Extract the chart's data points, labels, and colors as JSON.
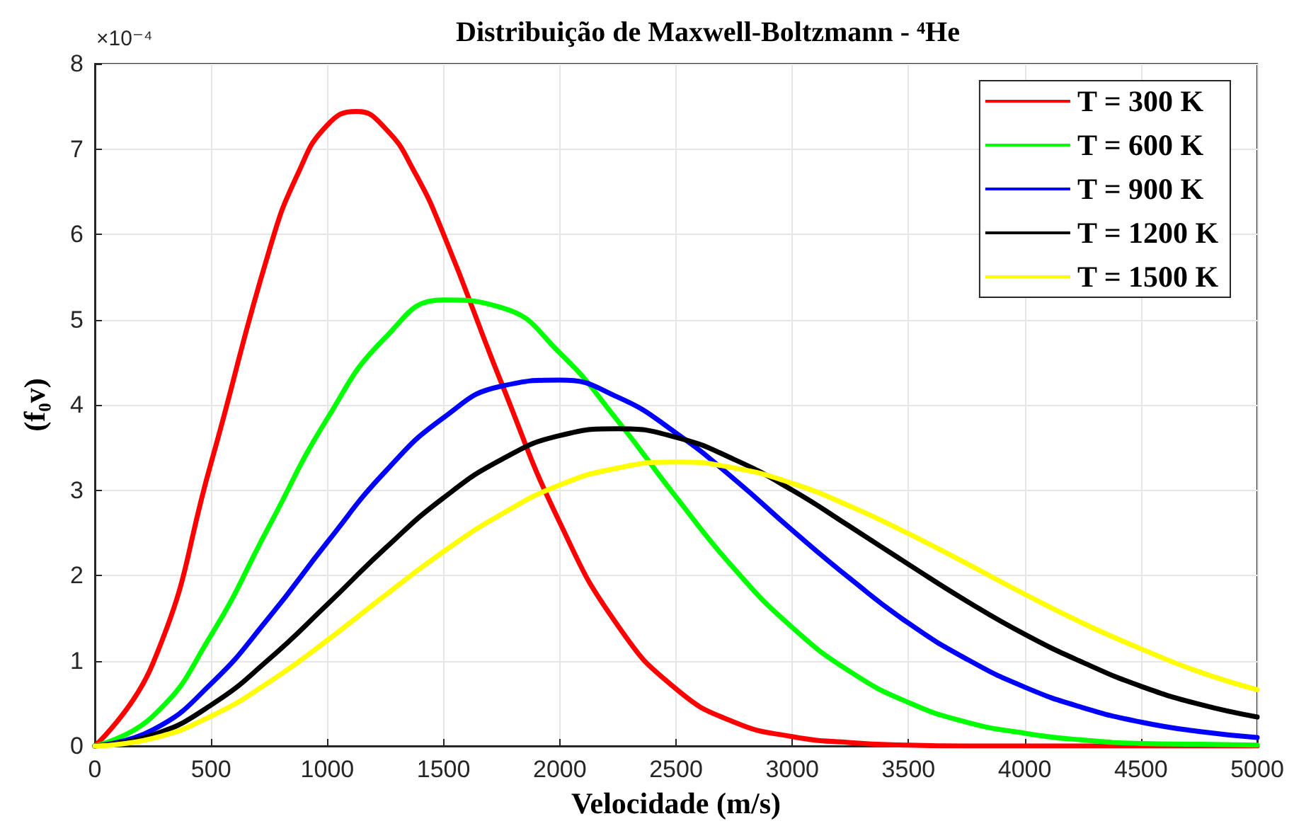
{
  "chart_data": {
    "type": "line",
    "title": "Distribuição de Maxwell-Boltzmann - ⁴He",
    "xlabel": "Velocidade (m/s)",
    "ylabel": "(f₀v)",
    "annotations": [
      "×10⁻⁴"
    ],
    "x": [
      0,
      250,
      500,
      750,
      1000,
      1250,
      1500,
      1750,
      2000,
      2250,
      2500,
      2750,
      3000,
      3250,
      3500,
      3750,
      4000,
      4250,
      4500,
      4750,
      5000
    ],
    "series": [
      {
        "name": "T = 300 K",
        "color": "#ff0000",
        "x": [
          0,
          250,
          500,
          750,
          875,
          1000,
          1125,
          1250,
          1375,
          1500,
          1750,
          2000,
          2250,
          2500,
          2750,
          3000,
          3250,
          3500,
          3750,
          4000,
          4250,
          4500,
          4750,
          5000
        ],
        "values": [
          0,
          0.97,
          3.32,
          5.81,
          6.72,
          7.28,
          7.44,
          7.24,
          6.73,
          6.0,
          4.25,
          2.62,
          1.41,
          0.67,
          0.28,
          0.11,
          0.04,
          0.01,
          0,
          0,
          0,
          0,
          0,
          0
        ]
      },
      {
        "name": "T = 600 K",
        "color": "#00ff00",
        "values": [
          0,
          0.35,
          1.3,
          2.58,
          3.84,
          4.79,
          5.23,
          5.14,
          4.61,
          3.81,
          2.92,
          2.08,
          1.39,
          0.87,
          0.51,
          0.28,
          0.15,
          0.07,
          0.03,
          0.02,
          0.01
        ]
      },
      {
        "name": "T = 900 K",
        "color": "#0000ff",
        "values": [
          0,
          0.19,
          0.73,
          1.51,
          2.39,
          3.22,
          3.85,
          4.22,
          4.29,
          4.09,
          3.67,
          3.13,
          2.53,
          1.96,
          1.44,
          1.02,
          0.69,
          0.45,
          0.28,
          0.17,
          0.1
        ]
      },
      {
        "name": "T = 1200 K",
        "color": "#000000",
        "values": [
          0,
          0.13,
          0.48,
          1.02,
          1.66,
          2.32,
          2.91,
          3.36,
          3.64,
          3.72,
          3.62,
          3.36,
          3.0,
          2.57,
          2.13,
          1.7,
          1.31,
          0.98,
          0.7,
          0.49,
          0.34
        ]
      },
      {
        "name": "T = 1500 K",
        "color": "#ffff00",
        "values": [
          0,
          0.09,
          0.35,
          0.75,
          1.24,
          1.77,
          2.28,
          2.72,
          3.06,
          3.26,
          3.33,
          3.26,
          3.08,
          2.81,
          2.49,
          2.14,
          1.78,
          1.44,
          1.14,
          0.87,
          0.66
        ]
      }
    ],
    "xlim": [
      0,
      5000
    ],
    "xticks": [
      0,
      500,
      1000,
      1500,
      2000,
      2500,
      3000,
      3500,
      4000,
      4500,
      5000
    ],
    "ylim": [
      0,
      8
    ],
    "yticks": [
      0,
      1,
      2,
      3,
      4,
      5,
      6,
      7,
      8
    ],
    "grid": true,
    "legend": "top right",
    "marker": "none",
    "line_style": "solid"
  }
}
